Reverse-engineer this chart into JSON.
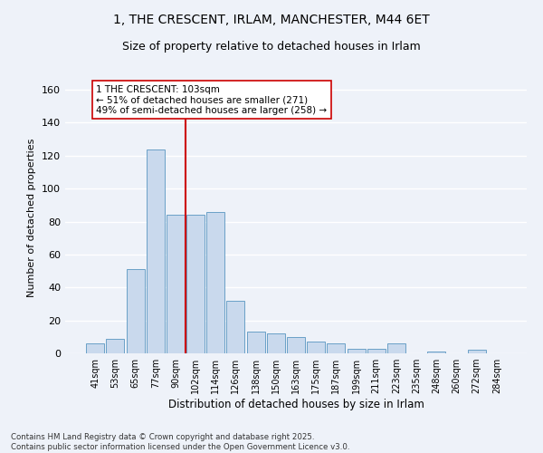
{
  "title": "1, THE CRESCENT, IRLAM, MANCHESTER, M44 6ET",
  "subtitle": "Size of property relative to detached houses in Irlam",
  "xlabel": "Distribution of detached houses by size in Irlam",
  "ylabel": "Number of detached properties",
  "bar_labels": [
    "41sqm",
    "53sqm",
    "65sqm",
    "77sqm",
    "90sqm",
    "102sqm",
    "114sqm",
    "126sqm",
    "138sqm",
    "150sqm",
    "163sqm",
    "175sqm",
    "187sqm",
    "199sqm",
    "211sqm",
    "223sqm",
    "235sqm",
    "248sqm",
    "260sqm",
    "272sqm",
    "284sqm"
  ],
  "bar_values": [
    6,
    9,
    51,
    124,
    84,
    84,
    86,
    32,
    13,
    12,
    10,
    7,
    6,
    3,
    3,
    6,
    0,
    1,
    0,
    2,
    0
  ],
  "bar_color": "#c9d9ed",
  "bar_edge_color": "#6aa0c7",
  "vline_index": 5,
  "vline_color": "#cc0000",
  "annotation_text": "1 THE CRESCENT: 103sqm\n← 51% of detached houses are smaller (271)\n49% of semi-detached houses are larger (258) →",
  "annotation_box_color": "#ffffff",
  "annotation_box_edge": "#cc0000",
  "ylim": [
    0,
    165
  ],
  "yticks": [
    0,
    20,
    40,
    60,
    80,
    100,
    120,
    140,
    160
  ],
  "footer": "Contains HM Land Registry data © Crown copyright and database right 2025.\nContains public sector information licensed under the Open Government Licence v3.0.",
  "bg_color": "#eef2f9",
  "grid_color": "#ffffff",
  "title_fontsize": 10,
  "subtitle_fontsize": 9
}
